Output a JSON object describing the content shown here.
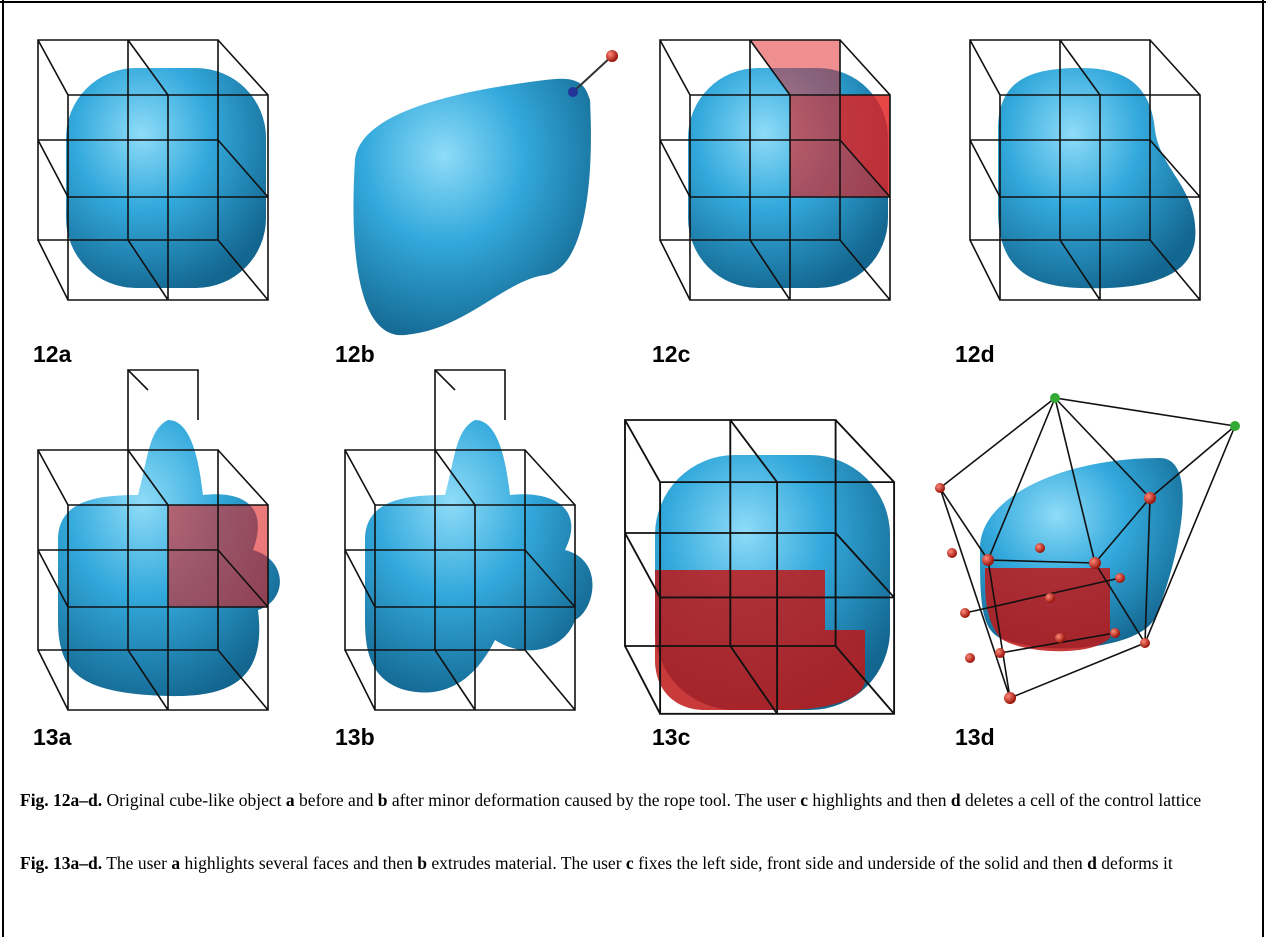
{
  "figures": {
    "panels": [
      "12a",
      "12b",
      "12c",
      "12d",
      "13a",
      "13b",
      "13c",
      "13d"
    ],
    "captions": [
      {
        "runs": [
          "Fig. 12a–d.",
          " Original cube-like object ",
          "a",
          " before and ",
          "b",
          " after minor deformation caused by the rope tool. The user ",
          "c",
          " highlights and then ",
          "d",
          " deletes a cell of the control lattice"
        ]
      },
      {
        "runs": [
          "Fig. 13a–d.",
          " The user ",
          "a",
          " highlights several faces and then ",
          "b",
          " extrudes material. The user ",
          "c",
          " fixes the left side, front side and underside of the solid and then ",
          "d",
          " deforms it"
        ]
      }
    ]
  }
}
